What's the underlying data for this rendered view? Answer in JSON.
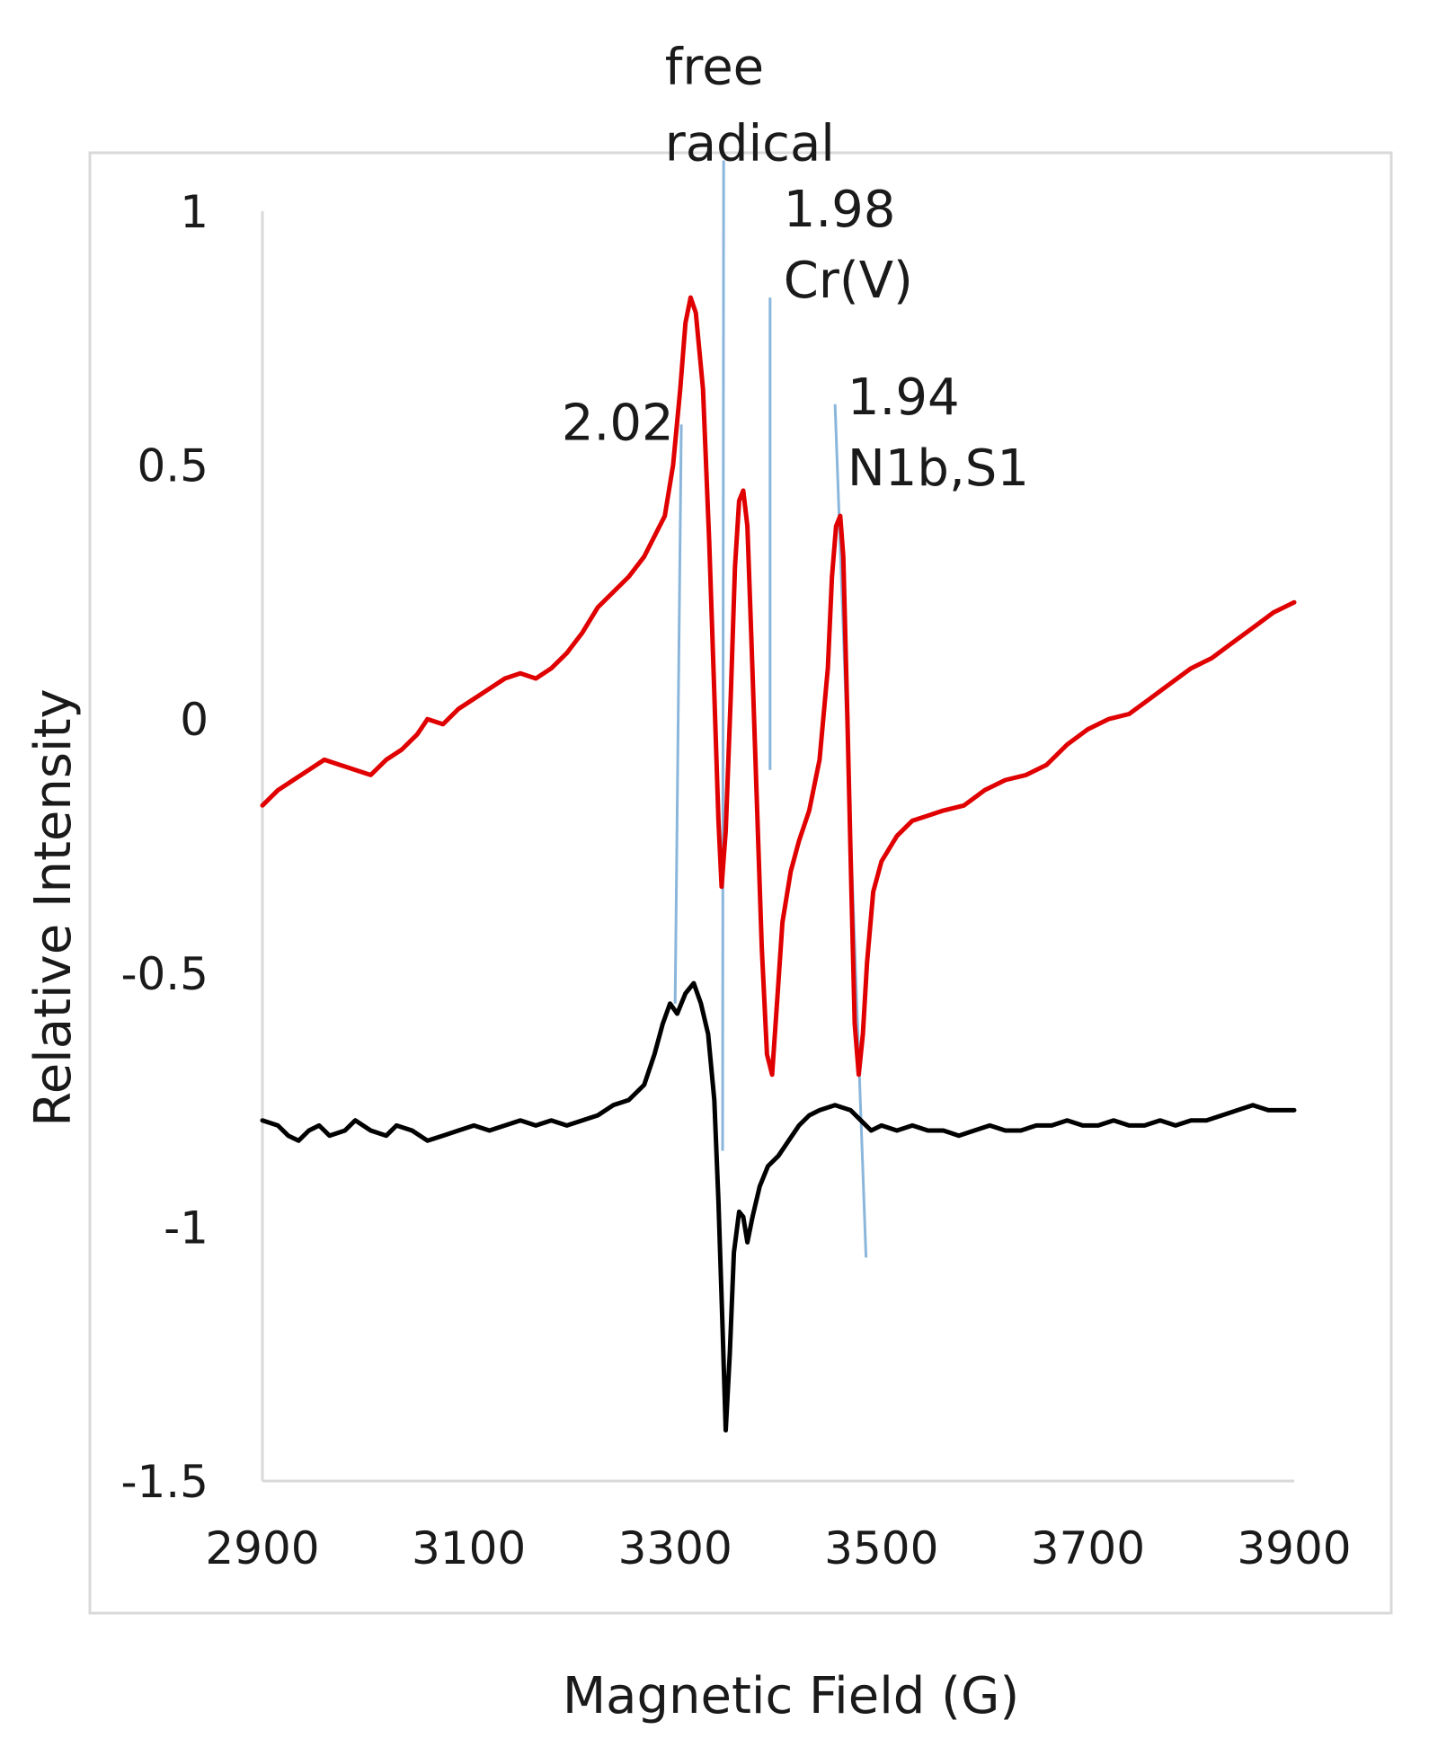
{
  "chart_data": {
    "type": "line",
    "title": "",
    "xlabel": "Magnetic Field (G)",
    "ylabel": "Relative Intensity",
    "xlim": [
      2900,
      3900
    ],
    "ylim": [
      -1.5,
      1
    ],
    "x_ticks": [
      2900,
      3100,
      3300,
      3500,
      3700,
      3900
    ],
    "x_tick_labels": [
      "2900",
      "3100",
      "3300",
      "3500",
      "3700",
      "3900"
    ],
    "y_ticks": [
      1,
      0.5,
      0,
      -0.5,
      -1,
      -1.5
    ],
    "y_tick_labels": [
      "1",
      "0.5",
      "0",
      "-0.5",
      "-1",
      "-1.5"
    ],
    "grid": false,
    "legend": "none",
    "series": [
      {
        "name": "red spectrum",
        "color": "#e00000",
        "points": [
          [
            2900,
            -0.17
          ],
          [
            2915,
            -0.14
          ],
          [
            2930,
            -0.12
          ],
          [
            2945,
            -0.1
          ],
          [
            2960,
            -0.08
          ],
          [
            2975,
            -0.09
          ],
          [
            2990,
            -0.1
          ],
          [
            3005,
            -0.11
          ],
          [
            3020,
            -0.08
          ],
          [
            3035,
            -0.06
          ],
          [
            3050,
            -0.03
          ],
          [
            3060,
            0.0
          ],
          [
            3075,
            -0.01
          ],
          [
            3090,
            0.02
          ],
          [
            3105,
            0.04
          ],
          [
            3120,
            0.06
          ],
          [
            3135,
            0.08
          ],
          [
            3150,
            0.09
          ],
          [
            3165,
            0.08
          ],
          [
            3180,
            0.1
          ],
          [
            3195,
            0.13
          ],
          [
            3210,
            0.17
          ],
          [
            3225,
            0.22
          ],
          [
            3240,
            0.25
          ],
          [
            3255,
            0.28
          ],
          [
            3270,
            0.32
          ],
          [
            3280,
            0.36
          ],
          [
            3290,
            0.4
          ],
          [
            3298,
            0.5
          ],
          [
            3305,
            0.65
          ],
          [
            3310,
            0.78
          ],
          [
            3315,
            0.83
          ],
          [
            3320,
            0.8
          ],
          [
            3327,
            0.65
          ],
          [
            3333,
            0.35
          ],
          [
            3338,
            0.05
          ],
          [
            3342,
            -0.2
          ],
          [
            3345,
            -0.33
          ],
          [
            3349,
            -0.22
          ],
          [
            3354,
            0.05
          ],
          [
            3358,
            0.3
          ],
          [
            3362,
            0.43
          ],
          [
            3366,
            0.45
          ],
          [
            3370,
            0.38
          ],
          [
            3374,
            0.15
          ],
          [
            3379,
            -0.15
          ],
          [
            3384,
            -0.45
          ],
          [
            3389,
            -0.66
          ],
          [
            3394,
            -0.7
          ],
          [
            3399,
            -0.55
          ],
          [
            3404,
            -0.4
          ],
          [
            3412,
            -0.3
          ],
          [
            3420,
            -0.24
          ],
          [
            3430,
            -0.18
          ],
          [
            3440,
            -0.08
          ],
          [
            3448,
            0.1
          ],
          [
            3452,
            0.28
          ],
          [
            3456,
            0.38
          ],
          [
            3460,
            0.4
          ],
          [
            3463,
            0.32
          ],
          [
            3467,
            0.0
          ],
          [
            3471,
            -0.35
          ],
          [
            3474,
            -0.6
          ],
          [
            3478,
            -0.7
          ],
          [
            3482,
            -0.62
          ],
          [
            3486,
            -0.48
          ],
          [
            3492,
            -0.34
          ],
          [
            3500,
            -0.28
          ],
          [
            3515,
            -0.23
          ],
          [
            3530,
            -0.2
          ],
          [
            3545,
            -0.19
          ],
          [
            3560,
            -0.18
          ],
          [
            3580,
            -0.17
          ],
          [
            3600,
            -0.14
          ],
          [
            3620,
            -0.12
          ],
          [
            3640,
            -0.11
          ],
          [
            3660,
            -0.09
          ],
          [
            3680,
            -0.05
          ],
          [
            3700,
            -0.02
          ],
          [
            3720,
            0.0
          ],
          [
            3740,
            0.01
          ],
          [
            3760,
            0.04
          ],
          [
            3780,
            0.07
          ],
          [
            3800,
            0.1
          ],
          [
            3820,
            0.12
          ],
          [
            3840,
            0.15
          ],
          [
            3860,
            0.18
          ],
          [
            3880,
            0.21
          ],
          [
            3900,
            0.23
          ]
        ]
      },
      {
        "name": "black spectrum",
        "color": "#000000",
        "points": [
          [
            2900,
            -0.79
          ],
          [
            2915,
            -0.8
          ],
          [
            2925,
            -0.82
          ],
          [
            2935,
            -0.83
          ],
          [
            2945,
            -0.81
          ],
          [
            2955,
            -0.8
          ],
          [
            2965,
            -0.82
          ],
          [
            2980,
            -0.81
          ],
          [
            2990,
            -0.79
          ],
          [
            3005,
            -0.81
          ],
          [
            3020,
            -0.82
          ],
          [
            3030,
            -0.8
          ],
          [
            3045,
            -0.81
          ],
          [
            3060,
            -0.83
          ],
          [
            3075,
            -0.82
          ],
          [
            3090,
            -0.81
          ],
          [
            3105,
            -0.8
          ],
          [
            3120,
            -0.81
          ],
          [
            3135,
            -0.8
          ],
          [
            3150,
            -0.79
          ],
          [
            3165,
            -0.8
          ],
          [
            3180,
            -0.79
          ],
          [
            3195,
            -0.8
          ],
          [
            3210,
            -0.79
          ],
          [
            3225,
            -0.78
          ],
          [
            3240,
            -0.76
          ],
          [
            3255,
            -0.75
          ],
          [
            3270,
            -0.72
          ],
          [
            3280,
            -0.66
          ],
          [
            3288,
            -0.6
          ],
          [
            3295,
            -0.56
          ],
          [
            3302,
            -0.58
          ],
          [
            3310,
            -0.54
          ],
          [
            3318,
            -0.52
          ],
          [
            3325,
            -0.56
          ],
          [
            3332,
            -0.62
          ],
          [
            3338,
            -0.75
          ],
          [
            3342,
            -0.95
          ],
          [
            3346,
            -1.2
          ],
          [
            3349,
            -1.4
          ],
          [
            3353,
            -1.25
          ],
          [
            3357,
            -1.05
          ],
          [
            3362,
            -0.97
          ],
          [
            3366,
            -0.98
          ],
          [
            3370,
            -1.03
          ],
          [
            3375,
            -0.98
          ],
          [
            3382,
            -0.92
          ],
          [
            3390,
            -0.88
          ],
          [
            3400,
            -0.86
          ],
          [
            3410,
            -0.83
          ],
          [
            3420,
            -0.8
          ],
          [
            3430,
            -0.78
          ],
          [
            3440,
            -0.77
          ],
          [
            3455,
            -0.76
          ],
          [
            3470,
            -0.77
          ],
          [
            3480,
            -0.79
          ],
          [
            3490,
            -0.81
          ],
          [
            3500,
            -0.8
          ],
          [
            3515,
            -0.81
          ],
          [
            3530,
            -0.8
          ],
          [
            3545,
            -0.81
          ],
          [
            3560,
            -0.81
          ],
          [
            3575,
            -0.82
          ],
          [
            3590,
            -0.81
          ],
          [
            3605,
            -0.8
          ],
          [
            3620,
            -0.81
          ],
          [
            3635,
            -0.81
          ],
          [
            3650,
            -0.8
          ],
          [
            3665,
            -0.8
          ],
          [
            3680,
            -0.79
          ],
          [
            3695,
            -0.8
          ],
          [
            3710,
            -0.8
          ],
          [
            3725,
            -0.79
          ],
          [
            3740,
            -0.8
          ],
          [
            3755,
            -0.8
          ],
          [
            3770,
            -0.79
          ],
          [
            3785,
            -0.8
          ],
          [
            3800,
            -0.79
          ],
          [
            3815,
            -0.79
          ],
          [
            3830,
            -0.78
          ],
          [
            3845,
            -0.77
          ],
          [
            3860,
            -0.76
          ],
          [
            3875,
            -0.77
          ],
          [
            3890,
            -0.77
          ],
          [
            3900,
            -0.77
          ]
        ]
      }
    ],
    "marker_lines": [
      {
        "name": "g-2.02",
        "color": "#8ab6dc",
        "from": [
          3300,
          -0.56
        ],
        "to": [
          3306,
          0.58
        ]
      },
      {
        "name": "free-radical",
        "color": "#8ab6dc",
        "from": [
          3346,
          -0.85
        ],
        "to": [
          3347,
          1.1
        ]
      },
      {
        "name": "g-1.98",
        "color": "#8ab6dc",
        "from": [
          3392,
          -0.1
        ],
        "to": [
          3392,
          0.83
        ]
      },
      {
        "name": "g-1.94",
        "color": "#8ab6dc",
        "from": [
          3485,
          -1.06
        ],
        "to": [
          3455,
          0.62
        ]
      }
    ],
    "annotations": [
      {
        "name": "annot-free",
        "text": "free",
        "x": 3290,
        "y": 1.25
      },
      {
        "name": "annot-radical",
        "text": "radical",
        "x": 3290,
        "y": 1.1
      },
      {
        "name": "annot-2-02",
        "text": "2.02",
        "x": 3190,
        "y": 0.55
      },
      {
        "name": "annot-1-98",
        "text": "1.98",
        "x": 3405,
        "y": 0.97
      },
      {
        "name": "annot-crv",
        "text": "Cr(V)",
        "x": 3405,
        "y": 0.83
      },
      {
        "name": "annot-1-94",
        "text": "1.94",
        "x": 3467,
        "y": 0.6
      },
      {
        "name": "annot-n1b-s1",
        "text": "N1b,S1",
        "x": 3467,
        "y": 0.46
      }
    ]
  }
}
